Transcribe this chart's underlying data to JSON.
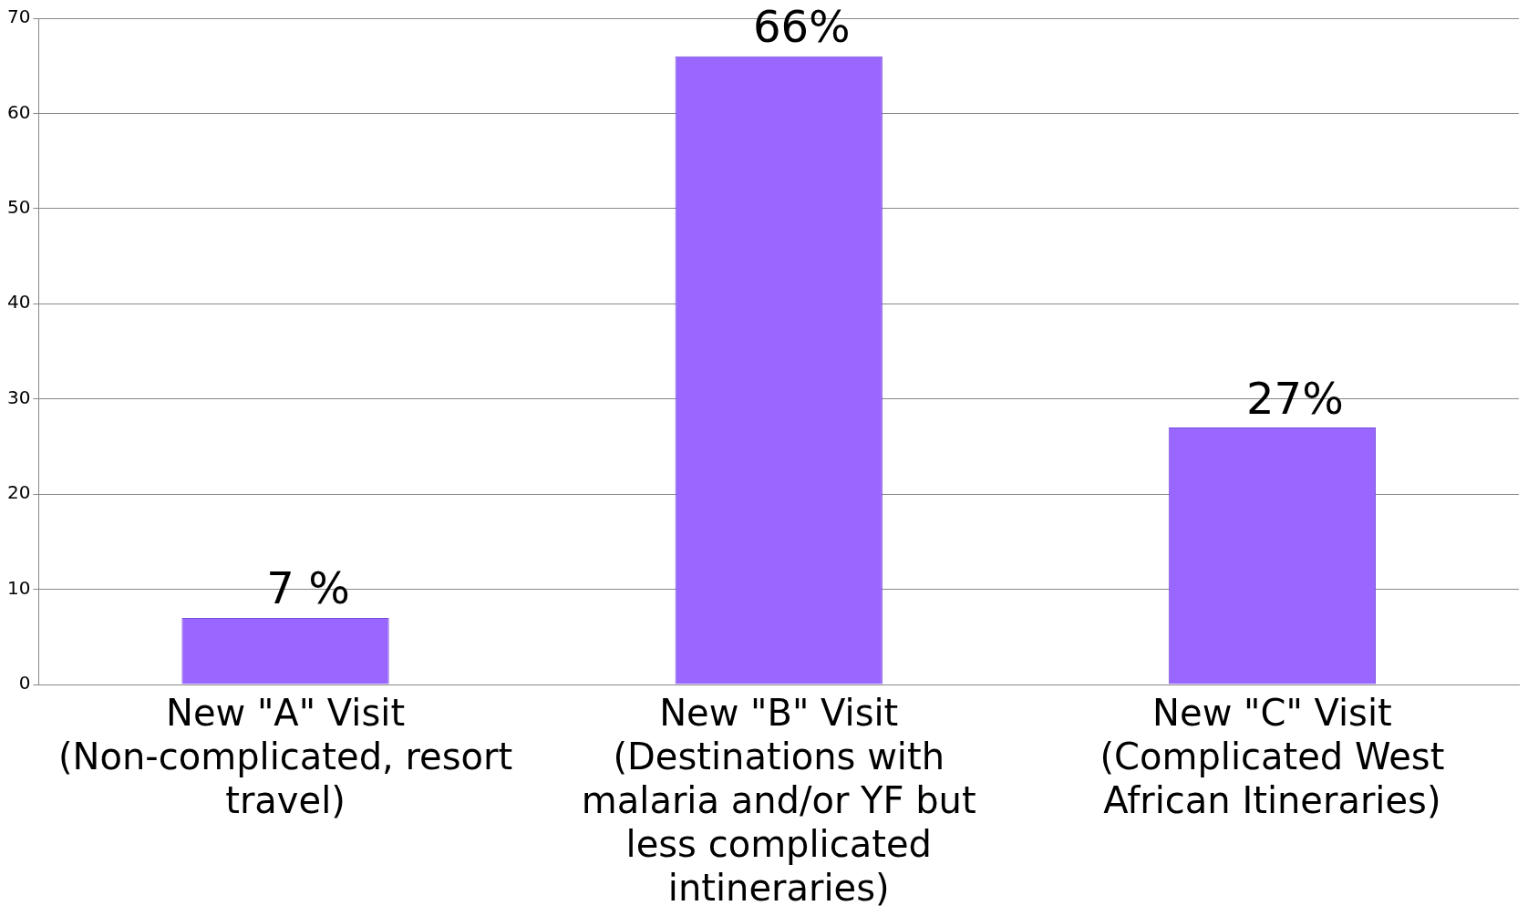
{
  "chart_data": {
    "type": "bar",
    "categories": [
      "New \"A\" Visit (Non-complicated, resort travel)",
      "New \"B\" Visit (Destinations with malaria and/or YF but less complicated intineraries)",
      "New \"C\" Visit (Complicated West African Itineraries)"
    ],
    "values": [
      7,
      66,
      27
    ],
    "value_labels": [
      "7 %",
      "66%",
      "27%"
    ],
    "color": "#9966ff",
    "ylim": [
      0,
      70
    ],
    "yticks": [
      0,
      10,
      20,
      30,
      40,
      50,
      60,
      70
    ],
    "grid": "y",
    "legend": false
  }
}
